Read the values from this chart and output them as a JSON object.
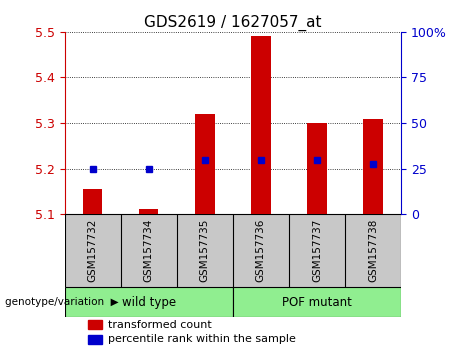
{
  "title": "GDS2619 / 1627057_at",
  "samples": [
    "GSM157732",
    "GSM157734",
    "GSM157735",
    "GSM157736",
    "GSM157737",
    "GSM157738"
  ],
  "red_bar_values": [
    5.155,
    5.112,
    5.32,
    5.49,
    5.3,
    5.31
  ],
  "blue_dot_values": [
    5.2,
    5.2,
    5.218,
    5.22,
    5.218,
    5.21
  ],
  "ylim": [
    5.1,
    5.5
  ],
  "yticks": [
    5.1,
    5.2,
    5.3,
    5.4,
    5.5
  ],
  "right_yticks": [
    0,
    25,
    50,
    75,
    100
  ],
  "right_ytick_labels": [
    "0",
    "25",
    "50",
    "75",
    "100%"
  ],
  "bar_bottom": 5.1,
  "red_color": "#CC0000",
  "blue_color": "#0000CC",
  "bg_color": "#FFFFFF",
  "gray_color": "#C8C8C8",
  "green_color": "#90EE90",
  "legend_red_label": "transformed count",
  "legend_blue_label": "percentile rank within the sample",
  "group_label": "genotype/variation",
  "wild_type_label": "wild type",
  "pof_label": "POF mutant"
}
